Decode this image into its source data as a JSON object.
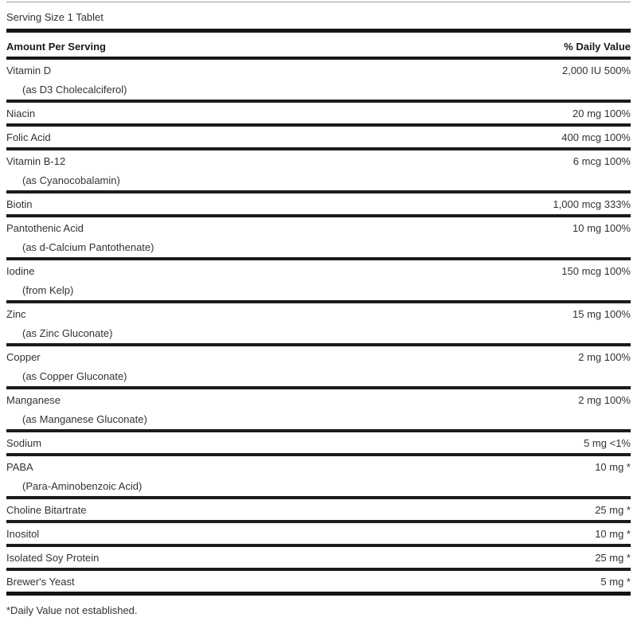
{
  "label": {
    "serving_size": "Serving Size 1 Tablet",
    "header": {
      "left": "Amount Per Serving",
      "right": "% Daily Value"
    },
    "rows": [
      {
        "name": "Vitamin D",
        "sub": "(as D3 Cholecalciferol)",
        "value": "2,000 IU 500%"
      },
      {
        "name": "Niacin",
        "sub": "",
        "value": "20 mg 100%"
      },
      {
        "name": "Folic Acid",
        "sub": "",
        "value": "400 mcg 100%"
      },
      {
        "name": "Vitamin B-12",
        "sub": "(as Cyanocobalamin)",
        "value": "6 mcg 100%"
      },
      {
        "name": "Biotin",
        "sub": "",
        "value": "1,000 mcg 333%"
      },
      {
        "name": "Pantothenic Acid",
        "sub": "(as d-Calcium Pantothenate)",
        "value": "10 mg 100%"
      },
      {
        "name": "Iodine",
        "sub": "(from Kelp)",
        "value": "150 mcg 100%"
      },
      {
        "name": "Zinc",
        "sub": "(as Zinc Gluconate)",
        "value": "15 mg 100%"
      },
      {
        "name": "Copper",
        "sub": "(as Copper Gluconate)",
        "value": "2 mg 100%"
      },
      {
        "name": "Manganese",
        "sub": "(as Manganese Gluconate)",
        "value": "2 mg 100%"
      },
      {
        "name": "Sodium",
        "sub": "",
        "value": "5 mg <1%"
      },
      {
        "name": "PABA",
        "sub": "(Para-Aminobenzoic Acid)",
        "value": "10 mg *"
      },
      {
        "name": "Choline Bitartrate",
        "sub": "",
        "value": "25 mg *"
      },
      {
        "name": "Inositol",
        "sub": "",
        "value": "10 mg *"
      },
      {
        "name": "Isolated Soy Protein",
        "sub": "",
        "value": "25 mg *"
      },
      {
        "name": "Brewer's Yeast",
        "sub": "",
        "value": "5 mg *"
      }
    ],
    "footnote": "*Daily Value not established.",
    "colors": {
      "background": "#ffffff",
      "text": "#333333",
      "divider": "#171717",
      "top_hairline": "#9a9a9a"
    }
  }
}
